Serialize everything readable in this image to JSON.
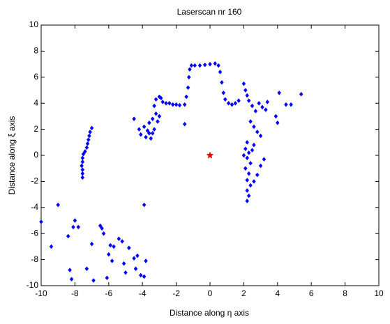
{
  "chart_data": {
    "type": "scatter",
    "title": "Laserscan nr 160",
    "x_label": "Distance along η axis",
    "y_label": "Distance along ξ axis",
    "xlim": [
      -10,
      10
    ],
    "ylim": [
      -10,
      10
    ],
    "xticks": [
      -10,
      -8,
      -6,
      -4,
      -2,
      0,
      2,
      4,
      6,
      8,
      10
    ],
    "yticks": [
      -10,
      -8,
      -6,
      -4,
      -2,
      0,
      2,
      4,
      6,
      8,
      10
    ],
    "grid": false,
    "series": [
      {
        "color": "#0000ff",
        "marker": "diamond",
        "x": [
          -7.55,
          -7.55,
          -7.55,
          -7.6,
          -7.55,
          -7.55,
          -7.5,
          -7.4,
          -7.3,
          -7.25,
          -7.2,
          -7.15,
          -7.1,
          -7.0,
          -4.5,
          -4.2,
          -4.1,
          -3.9,
          -3.8,
          -3.7,
          -3.6,
          -3.5,
          -3.4,
          -3.3,
          -3.2,
          -3.1,
          -3.0,
          -3.3,
          -3.2,
          -3.0,
          -2.9,
          -3.4,
          -3.6,
          -2.8,
          -2.6,
          -2.4,
          -2.2,
          -2.0,
          -1.8,
          -1.5,
          -1.4,
          -1.3,
          -1.25,
          -1.2,
          -1.1,
          -0.9,
          -0.6,
          -0.3,
          0,
          0.3,
          0.5,
          0.6,
          0.7,
          0.8,
          0.9,
          1.1,
          1.3,
          1.5,
          1.7,
          -1.5,
          2.0,
          2.1,
          2.2,
          2.3,
          2.5,
          2.7,
          2.9,
          3.1,
          3.3,
          3.4,
          2.4,
          2.6,
          2.8,
          3.0,
          2.2,
          2.1,
          2.3,
          2.2,
          2.4,
          2.1,
          2.3,
          2.2,
          2.4,
          2.2,
          2.3,
          2.2,
          2.6,
          2.8,
          3.0,
          3.2,
          2.6,
          2.0,
          2.5,
          3.9,
          4.0,
          4.1,
          4.5,
          4.8,
          5.4,
          -10,
          -9.4,
          -9.0,
          -8.4,
          -8.3,
          -8.2,
          -8.1,
          -8.0,
          -7.8,
          -7.3,
          -7.0,
          -6.9,
          -6.5,
          -6.4,
          -6.3,
          -6.1,
          -6.0,
          -5.9,
          -5.8,
          -5.7,
          -5.4,
          -5.2,
          -5.1,
          -5.0,
          -4.8,
          -4.5,
          -4.4,
          -4.3,
          -4.1,
          -3.9,
          -3.9,
          -3.8
        ],
        "values": [
          -1.7,
          -1.4,
          -1.1,
          -0.8,
          -0.5,
          -0.2,
          0.1,
          0.3,
          0.6,
          0.9,
          1.2,
          1.5,
          1.8,
          2.1,
          2.8,
          2.0,
          1.6,
          2.2,
          1.4,
          1.9,
          2.5,
          1.3,
          2.8,
          2.0,
          3.2,
          2.6,
          3.0,
          3.8,
          4.3,
          4.5,
          4.4,
          1.7,
          1.7,
          4.1,
          4.0,
          4.0,
          3.9,
          3.9,
          3.85,
          3.9,
          4.5,
          5.2,
          6.0,
          6.6,
          6.9,
          6.9,
          6.9,
          6.95,
          7.0,
          7.05,
          6.9,
          6.4,
          5.6,
          4.8,
          4.3,
          4.0,
          3.9,
          4.0,
          4.2,
          2.4,
          5.5,
          5.0,
          4.6,
          4.2,
          3.8,
          3.4,
          4.0,
          3.7,
          3.5,
          4.1,
          2.6,
          2.2,
          1.8,
          1.5,
          1.0,
          0.5,
          0.2,
          -0.2,
          -0.6,
          -1.0,
          -1.4,
          -1.9,
          -2.3,
          -2.7,
          -3.1,
          -3.5,
          -2.0,
          -1.5,
          -0.8,
          -0.3,
          0.8,
          0.0,
          0.4,
          3.0,
          2.5,
          4.8,
          3.9,
          3.9,
          4.7,
          -5.1,
          -7.0,
          -3.8,
          -6.2,
          -8.8,
          -9.5,
          -5.5,
          -5.0,
          -5.5,
          -8.7,
          -6.8,
          -9.6,
          -5.4,
          -5.6,
          -6.0,
          -9.4,
          -7.6,
          -6.9,
          -8.1,
          -7.0,
          -6.4,
          -6.6,
          -8.3,
          -9.0,
          -7.1,
          -7.9,
          -8.7,
          -7.7,
          -9.2,
          -9.3,
          -3.8,
          -8.1
        ]
      },
      {
        "color": "#ff0000",
        "marker": "star",
        "x": [
          0
        ],
        "values": [
          0
        ]
      }
    ]
  }
}
